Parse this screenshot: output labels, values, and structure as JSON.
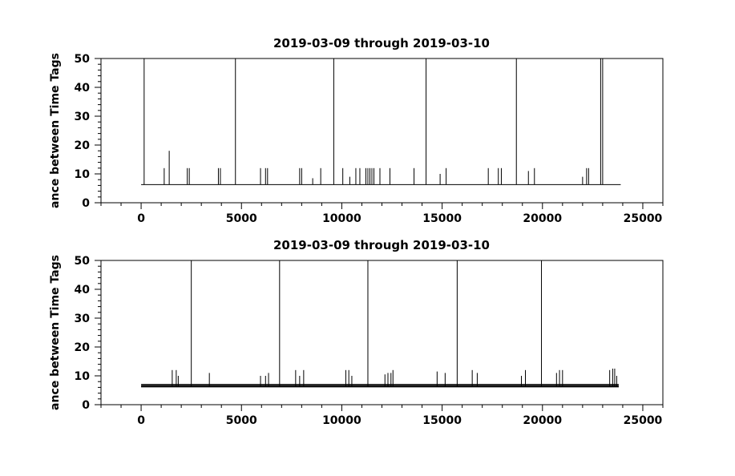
{
  "chart_data": [
    {
      "type": "line",
      "title": "2019-03-09 through 2019-03-10",
      "ylabel": "ance between Time Tags",
      "xlabel": "",
      "xlim": [
        -2000,
        26000
      ],
      "ylim": [
        0,
        50
      ],
      "xticks": [
        0,
        5000,
        10000,
        15000,
        20000,
        25000
      ],
      "xtick_labels": [
        "0",
        "5000",
        "10000",
        "15000",
        "20000",
        "25000"
      ],
      "yticks": [
        0,
        10,
        20,
        30,
        40,
        50
      ],
      "ytick_labels": [
        "0",
        "10",
        "20",
        "30",
        "40",
        "50"
      ],
      "baseline": {
        "x_start": 0,
        "x_end": 23900,
        "y": 6.3
      },
      "spikes": {
        "x": [
          150,
          1150,
          1400,
          2300,
          2400,
          3850,
          3950,
          4700,
          5950,
          6200,
          6300,
          7900,
          8000,
          8550,
          8950,
          9600,
          10050,
          10400,
          10700,
          10900,
          11200,
          11300,
          11400,
          11500,
          11600,
          11900,
          12400,
          13600,
          14200,
          14900,
          15200,
          17300,
          17800,
          17950,
          18700,
          19300,
          19600,
          22000,
          22200,
          22300,
          22900,
          23000
        ],
        "y": [
          50,
          12,
          18,
          12,
          12,
          12,
          12,
          50,
          12,
          12,
          12,
          12,
          12,
          8.5,
          12,
          50,
          12,
          9,
          12,
          12,
          12,
          12,
          12,
          12,
          12,
          12,
          12,
          12,
          50,
          10,
          12,
          12,
          12,
          12,
          50,
          11,
          12,
          9,
          12,
          12,
          50,
          50
        ]
      }
    },
    {
      "type": "line",
      "title": "2019-03-09 through 2019-03-10",
      "ylabel": "ance between Time Tags",
      "xlabel": "",
      "xlim": [
        -2000,
        26000
      ],
      "ylim": [
        0,
        50
      ],
      "xticks": [
        0,
        5000,
        10000,
        15000,
        20000,
        25000
      ],
      "xtick_labels": [
        "0",
        "5000",
        "10000",
        "15000",
        "20000",
        "25000"
      ],
      "yticks": [
        0,
        10,
        20,
        30,
        40,
        50
      ],
      "ytick_labels": [
        "0",
        "10",
        "20",
        "30",
        "40",
        "50"
      ],
      "baseline": {
        "x_start": 0,
        "x_end": 23800,
        "y": 6.3
      },
      "band": {
        "x_start": 0,
        "x_end": 23800,
        "y_low": 6.0,
        "y_high": 7.2
      },
      "spikes": {
        "x": [
          1550,
          1750,
          1850,
          2500,
          3400,
          5950,
          6200,
          6350,
          6900,
          7700,
          7900,
          8100,
          10200,
          10350,
          10500,
          11300,
          12150,
          12300,
          12450,
          12550,
          14750,
          15150,
          15750,
          16500,
          16750,
          18950,
          19150,
          19950,
          20700,
          20850,
          21000,
          23350,
          23500,
          23600,
          23700
        ],
        "y": [
          12,
          12,
          10,
          50,
          11,
          10,
          10,
          11,
          50,
          12,
          10,
          12,
          12,
          12,
          10,
          50,
          10.5,
          11,
          11,
          12,
          11.5,
          11,
          50,
          12,
          11,
          10,
          12,
          50,
          11,
          12,
          12,
          12,
          12.5,
          12.5,
          10
        ]
      }
    }
  ]
}
